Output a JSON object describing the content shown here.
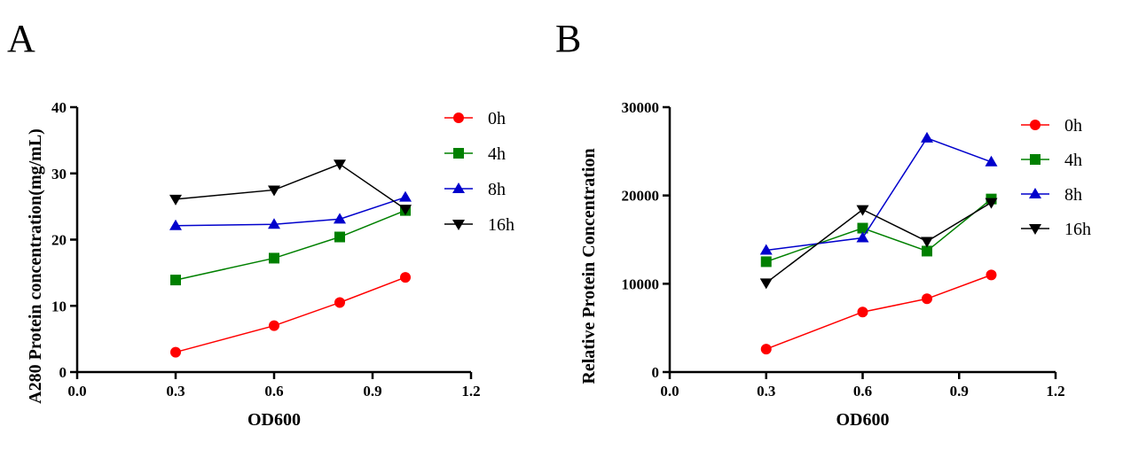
{
  "chart_data": [
    {
      "type": "line",
      "panel_label": "A",
      "xlabel": "OD600",
      "ylabel": "A280 Protein concentration(mg/mL)",
      "xlim": [
        0,
        1.2
      ],
      "ylim": [
        0,
        40
      ],
      "xticks": [
        "0.0",
        "0.3",
        "0.6",
        "0.9",
        "1.2"
      ],
      "yticks": [
        "0",
        "10",
        "20",
        "30",
        "40"
      ],
      "x": [
        0.3,
        0.6,
        0.8,
        1.0
      ],
      "legend_position": "right",
      "series": [
        {
          "name": "0h",
          "color": "#ff0000",
          "marker": "circle",
          "values": [
            3.0,
            7.0,
            10.5,
            14.3
          ]
        },
        {
          "name": "4h",
          "color": "#008000",
          "marker": "square",
          "values": [
            13.9,
            17.2,
            20.4,
            24.4
          ]
        },
        {
          "name": "8h",
          "color": "#0000cc",
          "marker": "triangle-up",
          "values": [
            22.1,
            22.3,
            23.1,
            26.4
          ]
        },
        {
          "name": "16h",
          "color": "#000000",
          "marker": "triangle-down",
          "values": [
            26.1,
            27.5,
            31.4,
            24.6
          ]
        }
      ]
    },
    {
      "type": "line",
      "panel_label": "B",
      "xlabel": "OD600",
      "ylabel": "Relative Protein Concentration",
      "xlim": [
        0,
        1.2
      ],
      "ylim": [
        0,
        30000
      ],
      "xticks": [
        "0.0",
        "0.3",
        "0.6",
        "0.9",
        "1.2"
      ],
      "yticks": [
        "0",
        "10000",
        "20000",
        "30000"
      ],
      "x": [
        0.3,
        0.6,
        0.8,
        1.0
      ],
      "legend_position": "right",
      "series": [
        {
          "name": "0h",
          "color": "#ff0000",
          "marker": "circle",
          "values": [
            2600,
            6800,
            8300,
            11000
          ]
        },
        {
          "name": "4h",
          "color": "#008000",
          "marker": "square",
          "values": [
            12500,
            16300,
            13700,
            19600
          ]
        },
        {
          "name": "8h",
          "color": "#0000cc",
          "marker": "triangle-up",
          "values": [
            13800,
            15200,
            26500,
            23800
          ]
        },
        {
          "name": "16h",
          "color": "#000000",
          "marker": "triangle-down",
          "values": [
            10100,
            18400,
            14800,
            19200
          ]
        }
      ]
    }
  ]
}
